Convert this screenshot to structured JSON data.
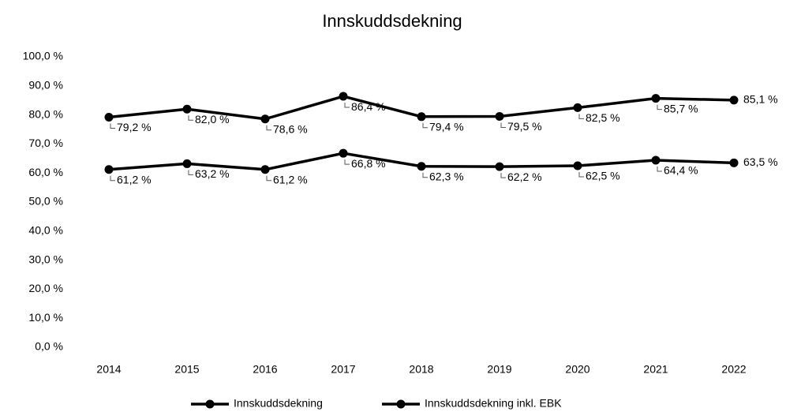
{
  "chart_data": {
    "type": "line",
    "title": "Innskuddsdekning",
    "categories": [
      "2014",
      "2015",
      "2016",
      "2017",
      "2018",
      "2019",
      "2020",
      "2021",
      "2022"
    ],
    "series": [
      {
        "name": "Innskuddsdekning",
        "color": "#000000",
        "values": [
          61.2,
          63.2,
          61.2,
          66.8,
          62.3,
          62.2,
          62.5,
          64.4,
          63.5
        ],
        "value_labels": [
          "61,2 %",
          "63,2 %",
          "61,2 %",
          "66,8 %",
          "62,3 %",
          "62,2 %",
          "62,5 %",
          "64,4 %",
          "63,5 %"
        ]
      },
      {
        "name": "Innskuddsdekning inkl. EBK",
        "color": "#000000",
        "values": [
          79.2,
          82.0,
          78.6,
          86.4,
          79.4,
          79.5,
          82.5,
          85.7,
          85.1
        ],
        "value_labels": [
          "79,2 %",
          "82,0 %",
          "78,6 %",
          "86,4 %",
          "79,4 %",
          "79,5 %",
          "82,5 %",
          "85,7 %",
          "85,1 %"
        ]
      }
    ],
    "ylim": [
      0,
      100
    ],
    "yticks": [
      {
        "value": 0,
        "label": "0,0 %"
      },
      {
        "value": 10,
        "label": "10,0 %"
      },
      {
        "value": 20,
        "label": "20,0 %"
      },
      {
        "value": 30,
        "label": "30,0 %"
      },
      {
        "value": 40,
        "label": "40,0 %"
      },
      {
        "value": 50,
        "label": "50,0 %"
      },
      {
        "value": 60,
        "label": "60,0 %"
      },
      {
        "value": 70,
        "label": "70,0 %"
      },
      {
        "value": 80,
        "label": "80,0 %"
      },
      {
        "value": 90,
        "label": "90,0 %"
      },
      {
        "value": 100,
        "label": "100,0 %"
      }
    ],
    "grid": false,
    "legend": "bottom"
  }
}
